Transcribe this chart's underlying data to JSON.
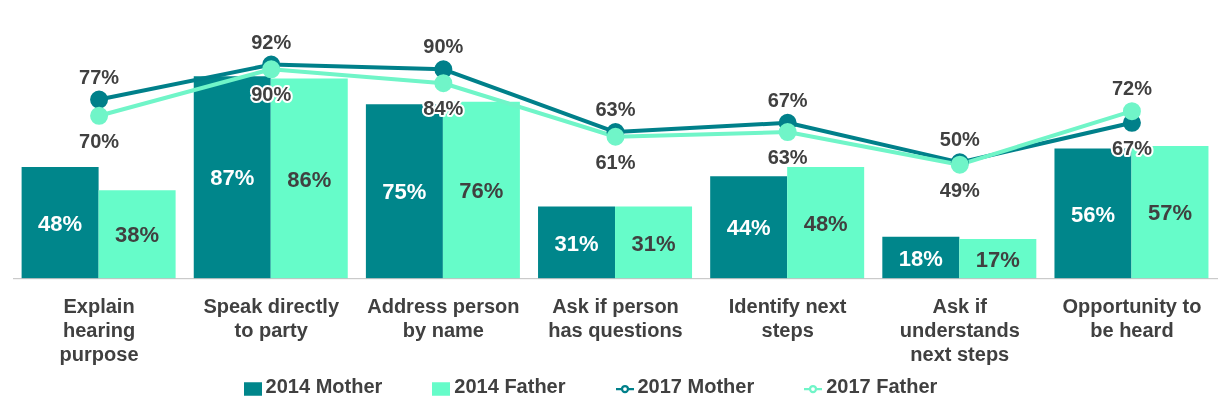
{
  "chart_data": {
    "type": "bar",
    "categories": [
      "Explain hearing purpose",
      "Speak directly to party",
      "Address person by name",
      "Ask if person has questions",
      "Identify next steps",
      "Ask if understands next steps",
      "Opportunity to be heard"
    ],
    "tick_labels": "x",
    "legend": "bottom",
    "grid": false,
    "series": [
      {
        "name": "2014 Mother",
        "color": "#00868b",
        "values": [
          48,
          87,
          75,
          31,
          44,
          18,
          56
        ],
        "value_labels": [
          "48%",
          "87%",
          "75%",
          "31%",
          "44%",
          "18%",
          "56%"
        ]
      },
      {
        "name": "2014 Father",
        "color": "#66fcc9",
        "values": [
          38,
          86,
          76,
          31,
          48,
          17,
          57
        ],
        "value_labels": [
          "38%",
          "86%",
          "76%",
          "31%",
          "48%",
          "17%",
          "57%"
        ]
      },
      {
        "name": "2017 Mother",
        "type": "line",
        "color": "#00808a",
        "marker": "circle",
        "values": [
          77,
          92,
          90,
          63,
          67,
          50,
          67
        ],
        "value_labels": [
          "77%",
          "92%",
          "90%",
          "63%",
          "67%",
          "50%",
          "67%"
        ]
      },
      {
        "name": "2017 Father",
        "type": "line",
        "color": "#70f5c8",
        "marker": "circle",
        "values": [
          70,
          90,
          84,
          61,
          63,
          49,
          72
        ],
        "value_labels": [
          "70%",
          "90%",
          "84%",
          "61%",
          "63%",
          "49%",
          "72%"
        ]
      }
    ]
  }
}
